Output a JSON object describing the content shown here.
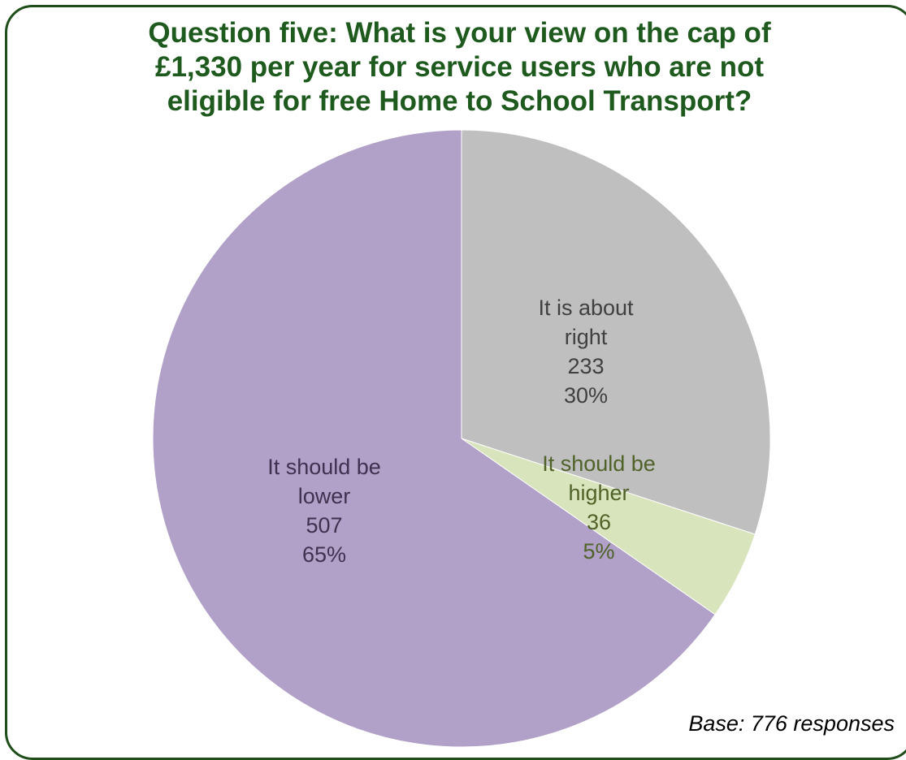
{
  "chart_data": {
    "type": "pie",
    "title_lines": [
      "Question five: What is your view on the cap of",
      "£1,330 per year for service users who are not",
      "eligible for free Home to School Transport?"
    ],
    "slices": [
      {
        "label_lines": [
          "It is about",
          "right"
        ],
        "value": 233,
        "percent_label": "30%",
        "value_label": "233",
        "color": "#bfbfbf",
        "label_color": "#404040"
      },
      {
        "label_lines": [
          "It should be",
          "higher"
        ],
        "value": 36,
        "percent_label": "5%",
        "value_label": "36",
        "color": "#d8e4bc",
        "label_color": "#4f6228"
      },
      {
        "label_lines": [
          "It should be",
          "lower"
        ],
        "value": 507,
        "percent_label": "65%",
        "value_label": "507",
        "color": "#b1a0c7",
        "label_color": "#403151"
      }
    ],
    "start_angle_deg": 0,
    "direction": "clockwise",
    "note": "Base: 776 responses"
  },
  "colors": {
    "frame": "#1f4e1a",
    "title": "#1e5a1e",
    "slice_border": "#ffffff"
  }
}
